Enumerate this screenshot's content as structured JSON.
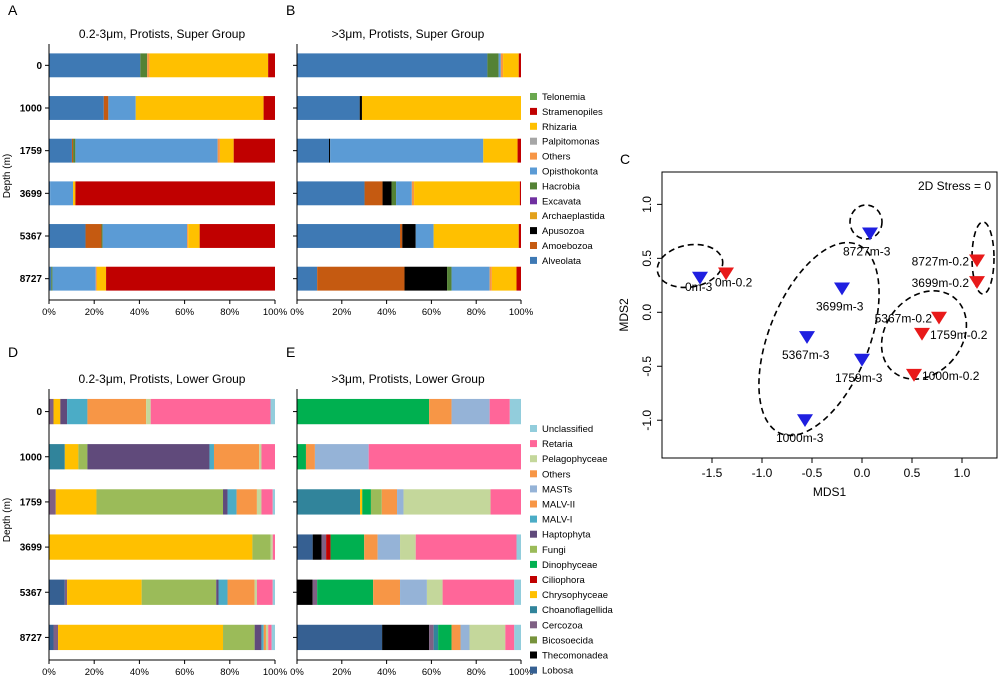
{
  "colors": {
    "super": {
      "Telonemia": "#6aa84f",
      "Stramenopiles": "#c00000",
      "Rhizaria": "#ffc000",
      "Palpitomonas": "#a6a6a6",
      "Others": "#f79646",
      "Opisthokonta": "#5b9bd5",
      "Hacrobia": "#548235",
      "Excavata": "#7030a0",
      "Archaeplastida": "#e3a11b",
      "Apusozoa": "#000000",
      "Amoebozoa": "#c55a11",
      "Alveolata": "#3e79b4"
    },
    "lower": {
      "Unclassified": "#92cddc",
      "Retaria": "#ff6699",
      "Pelagophyceae": "#c4d79b",
      "Others": "#f79646",
      "MASTs": "#95b3d7",
      "MALV-II": "#f79646",
      "MALV-I": "#4bacc6",
      "Haptophyta": "#604a7b",
      "Fungi": "#9bbb59",
      "Dinophyceae": "#00b050",
      "Ciliophora": "#c00000",
      "Chrysophyceae": "#ffc000",
      "Choanoflagellida": "#31849b",
      "Cercozoa": "#7f6084",
      "Bicosoecida": "#77933c",
      "Thecomonadea": "#000000",
      "Lobosa": "#366092"
    },
    "blue_marker": "#1f1fe0",
    "red_marker": "#e81a1a"
  },
  "panels": {
    "A": {
      "letter": "A",
      "title": "0.2-3μm, Protists, Super Group"
    },
    "B": {
      "letter": "B",
      "title": ">3μm, Protists, Super Group"
    },
    "C": {
      "letter": "C"
    },
    "D": {
      "letter": "D",
      "title": "0.2-3μm, Protists, Lower Group"
    },
    "E": {
      "letter": "E",
      "title": ">3μm, Protists, Lower Group"
    }
  },
  "depth_axis_label": "Depth (m)",
  "chart_data": [
    {
      "id": "A",
      "type": "bar",
      "orientation": "horizontal",
      "stacked": true,
      "title": "0.2-3μm, Protists, Super Group",
      "ylabel": "Depth (m)",
      "categories": [
        "0",
        "1000",
        "1759",
        "3699",
        "5367",
        "8727"
      ],
      "xticks": [
        "0%",
        "20%",
        "40%",
        "60%",
        "80%",
        "100%"
      ],
      "xlim": [
        0,
        100
      ],
      "series": [
        {
          "name": "Alveolata",
          "values": [
            40,
            24,
            10,
            0.5,
            16,
            1
          ]
        },
        {
          "name": "Amoebozoa",
          "values": [
            0,
            2,
            0.5,
            0,
            7,
            0
          ]
        },
        {
          "name": "Apusozoa",
          "values": [
            0,
            0,
            0,
            0,
            0,
            0
          ]
        },
        {
          "name": "Archaeplastida",
          "values": [
            0,
            0,
            0,
            0,
            0,
            0
          ]
        },
        {
          "name": "Excavata",
          "values": [
            0,
            0,
            0,
            0,
            0,
            0
          ]
        },
        {
          "name": "Hacrobia",
          "values": [
            3,
            0,
            1,
            0,
            0.5,
            0.5
          ]
        },
        {
          "name": "Opisthokonta",
          "values": [
            0,
            12,
            62,
            10,
            37,
            19
          ]
        },
        {
          "name": "Others",
          "values": [
            1,
            0,
            1,
            0,
            0.5,
            0.5
          ]
        },
        {
          "name": "Palpitomonas",
          "values": [
            0,
            0,
            0,
            0,
            0,
            0
          ]
        },
        {
          "name": "Rhizaria",
          "values": [
            52,
            56,
            6,
            1,
            5,
            4
          ]
        },
        {
          "name": "Stramenopiles",
          "values": [
            3,
            5,
            18,
            87,
            33,
            74
          ]
        },
        {
          "name": "Telonemia",
          "values": [
            0,
            0,
            0,
            0,
            0,
            0
          ]
        }
      ]
    },
    {
      "id": "B",
      "type": "bar",
      "orientation": "horizontal",
      "stacked": true,
      "title": ">3μm, Protists, Super Group",
      "ylabel": "",
      "categories": [
        "0",
        "1000",
        "1759",
        "3699",
        "5367",
        "8727"
      ],
      "xticks": [
        "0%",
        "20%",
        "40%",
        "60%",
        "80%",
        "100%"
      ],
      "xlim": [
        0,
        100
      ],
      "series": [
        {
          "name": "Alveolata",
          "values": [
            85,
            28,
            14,
            30,
            46,
            9
          ]
        },
        {
          "name": "Amoebozoa",
          "values": [
            0,
            0,
            0,
            8,
            1,
            39
          ]
        },
        {
          "name": "Apusozoa",
          "values": [
            0,
            1,
            0.5,
            4,
            6,
            19
          ]
        },
        {
          "name": "Archaeplastida",
          "values": [
            0,
            0,
            0,
            0,
            0,
            0
          ]
        },
        {
          "name": "Excavata",
          "values": [
            0,
            0,
            0,
            0,
            0,
            0
          ]
        },
        {
          "name": "Hacrobia",
          "values": [
            5,
            0,
            0,
            2,
            0,
            2
          ]
        },
        {
          "name": "Opisthokonta",
          "values": [
            1,
            0,
            67,
            7,
            8,
            17
          ]
        },
        {
          "name": "Others",
          "values": [
            1,
            0,
            0,
            1,
            0,
            1
          ]
        },
        {
          "name": "Palpitomonas",
          "values": [
            0,
            0,
            0,
            0,
            0,
            0
          ]
        },
        {
          "name": "Rhizaria",
          "values": [
            7,
            71,
            15,
            47,
            38,
            11
          ]
        },
        {
          "name": "Stramenopiles",
          "values": [
            1,
            0,
            1.5,
            0.5,
            1,
            2
          ]
        },
        {
          "name": "Telonemia",
          "values": [
            0,
            0,
            0,
            0,
            0,
            0
          ]
        }
      ]
    },
    {
      "id": "D",
      "type": "bar",
      "orientation": "horizontal",
      "stacked": true,
      "title": "0.2-3μm, Protists, Lower Group",
      "ylabel": "Depth (m)",
      "categories": [
        "0",
        "1000",
        "1759",
        "3699",
        "5367",
        "8727"
      ],
      "xticks": [
        "0%",
        "20%",
        "40%",
        "60%",
        "80%",
        "100%"
      ],
      "xlim": [
        0,
        100
      ],
      "series": [
        {
          "name": "Lobosa",
          "values": [
            0,
            0,
            0,
            0,
            7,
            2
          ]
        },
        {
          "name": "Thecomonadea",
          "values": [
            0,
            0,
            0,
            0,
            0,
            0
          ]
        },
        {
          "name": "Bicosoecida",
          "values": [
            0,
            0,
            0,
            0,
            0,
            0
          ]
        },
        {
          "name": "Cercozoa",
          "values": [
            2,
            0,
            3,
            0,
            1,
            2
          ]
        },
        {
          "name": "Choanoflagellida",
          "values": [
            0,
            7,
            0,
            0,
            0,
            0
          ]
        },
        {
          "name": "Chrysophyceae",
          "values": [
            3,
            6,
            18,
            90,
            33,
            73
          ]
        },
        {
          "name": "Ciliophora",
          "values": [
            0,
            0,
            0,
            0,
            0,
            0
          ]
        },
        {
          "name": "Dinophyceae",
          "values": [
            0,
            0,
            0,
            0,
            0,
            0
          ]
        },
        {
          "name": "Fungi",
          "values": [
            0,
            4,
            56,
            8,
            33,
            14
          ]
        },
        {
          "name": "Haptophyta",
          "values": [
            3,
            54,
            2,
            0,
            1,
            3
          ]
        },
        {
          "name": "MALV-I",
          "values": [
            9,
            2,
            4,
            0,
            4,
            1
          ]
        },
        {
          "name": "MALV-II",
          "values": [
            26,
            20,
            9,
            0,
            12,
            1
          ]
        },
        {
          "name": "MASTs",
          "values": [
            0,
            0,
            0,
            0,
            0,
            0
          ]
        },
        {
          "name": "Others",
          "values": [
            0,
            0,
            0,
            0,
            0,
            0
          ]
        },
        {
          "name": "Pelagophyceae",
          "values": [
            2,
            1,
            2,
            1,
            1,
            1
          ]
        },
        {
          "name": "Retaria",
          "values": [
            53,
            6,
            5,
            1,
            7,
            1.5
          ]
        },
        {
          "name": "Unclassified",
          "values": [
            2,
            0,
            1,
            0,
            1,
            1.5
          ]
        }
      ]
    },
    {
      "id": "E",
      "type": "bar",
      "orientation": "horizontal",
      "stacked": true,
      "title": ">3μm, Protists, Lower Group",
      "ylabel": "",
      "categories": [
        "0",
        "1000",
        "1759",
        "3699",
        "5367",
        "8727"
      ],
      "xticks": [
        "0%",
        "20%",
        "40%",
        "60%",
        "80%",
        "100%"
      ],
      "xlim": [
        0,
        100
      ],
      "series": [
        {
          "name": "Lobosa",
          "values": [
            0,
            0,
            0,
            7,
            0,
            38
          ]
        },
        {
          "name": "Thecomonadea",
          "values": [
            0,
            0,
            0,
            4,
            7,
            21
          ]
        },
        {
          "name": "Bicosoecida",
          "values": [
            0,
            0,
            0,
            0,
            0,
            0
          ]
        },
        {
          "name": "Cercozoa",
          "values": [
            0,
            0,
            0,
            2,
            2,
            2
          ]
        },
        {
          "name": "Choanoflagellida",
          "values": [
            0,
            0,
            29,
            0,
            0,
            2
          ]
        },
        {
          "name": "Chrysophyceae",
          "values": [
            0,
            0,
            1,
            0,
            0,
            0
          ]
        },
        {
          "name": "Ciliophora",
          "values": [
            0,
            0,
            0,
            2,
            0,
            0
          ]
        },
        {
          "name": "Dinophyceae",
          "values": [
            59,
            4,
            4,
            15,
            25,
            6
          ]
        },
        {
          "name": "Fungi",
          "values": [
            0,
            0,
            5,
            0,
            0,
            0
          ]
        },
        {
          "name": "Haptophyta",
          "values": [
            0,
            0,
            0,
            0,
            0,
            0
          ]
        },
        {
          "name": "MALV-I",
          "values": [
            0,
            0,
            0,
            0,
            0,
            0
          ]
        },
        {
          "name": "MALV-II",
          "values": [
            10,
            4,
            7,
            6,
            12,
            4
          ]
        },
        {
          "name": "MASTs",
          "values": [
            17,
            24,
            3,
            10,
            12,
            4
          ]
        },
        {
          "name": "Others",
          "values": [
            0,
            0,
            0,
            0,
            0,
            0
          ]
        },
        {
          "name": "Pelagophyceae",
          "values": [
            0,
            0,
            40,
            7,
            7,
            16
          ]
        },
        {
          "name": "Retaria",
          "values": [
            9,
            68,
            14,
            45,
            32,
            4
          ]
        },
        {
          "name": "Unclassified",
          "values": [
            5,
            0,
            0,
            2,
            3,
            3
          ]
        }
      ]
    },
    {
      "id": "C",
      "type": "scatter",
      "title": "",
      "xlabel": "MDS1",
      "ylabel": "MDS2",
      "xlim": [
        -2.0,
        1.35
      ],
      "ylim": [
        -1.35,
        1.3
      ],
      "xticks": [
        -1.5,
        -1.0,
        -0.5,
        0.0,
        0.5,
        1.0
      ],
      "xtick_labels": [
        "-1.5",
        "-1.0",
        "-0.5",
        "0.0",
        "0.5",
        "1.0"
      ],
      "yticks": [
        -1.0,
        -0.5,
        0.0,
        0.5,
        1.0
      ],
      "ytick_labels": [
        "-1.0",
        "-0.5",
        "0.0",
        "0.5",
        "1.0"
      ],
      "stress_label": "2D Stress = 0",
      "series": [
        {
          "name": ">3μm",
          "marker": "down-triangle",
          "color": "blue",
          "points": [
            {
              "label": "0m-3",
              "x": -1.62,
              "y": 0.32
            },
            {
              "label": "8727m-3",
              "x": 0.08,
              "y": 0.73
            },
            {
              "label": "3699m-3",
              "x": -0.2,
              "y": 0.22
            },
            {
              "label": "5367m-3",
              "x": -0.55,
              "y": -0.23
            },
            {
              "label": "1759m-3",
              "x": 0.0,
              "y": -0.44
            },
            {
              "label": "1000m-3",
              "x": -0.57,
              "y": -1.0
            }
          ]
        },
        {
          "name": "0.2-3μm",
          "marker": "down-triangle",
          "color": "red",
          "points": [
            {
              "label": "0m-0.2",
              "x": -1.36,
              "y": 0.36
            },
            {
              "label": "8727m-0.2",
              "x": 1.15,
              "y": 0.48
            },
            {
              "label": "3699m-0.2",
              "x": 1.15,
              "y": 0.28
            },
            {
              "label": "5367m-0.2",
              "x": 0.77,
              "y": -0.05
            },
            {
              "label": "1759m-0.2",
              "x": 0.6,
              "y": -0.2
            },
            {
              "label": "1000m-0.2",
              "x": 0.52,
              "y": -0.58
            }
          ]
        }
      ]
    }
  ],
  "legends": {
    "super": [
      "Telonemia",
      "Stramenopiles",
      "Rhizaria",
      "Palpitomonas",
      "Others",
      "Opisthokonta",
      "Hacrobia",
      "Excavata",
      "Archaeplastida",
      "Apusozoa",
      "Amoebozoa",
      "Alveolata"
    ],
    "lower": [
      "Unclassified",
      "Retaria",
      "Pelagophyceae",
      "Others",
      "MASTs",
      "MALV-II",
      "MALV-I",
      "Haptophyta",
      "Fungi",
      "Dinophyceae",
      "Ciliophora",
      "Chrysophyceae",
      "Choanoflagellida",
      "Cercozoa",
      "Bicosoecida",
      "Thecomonadea",
      "Lobosa"
    ]
  }
}
